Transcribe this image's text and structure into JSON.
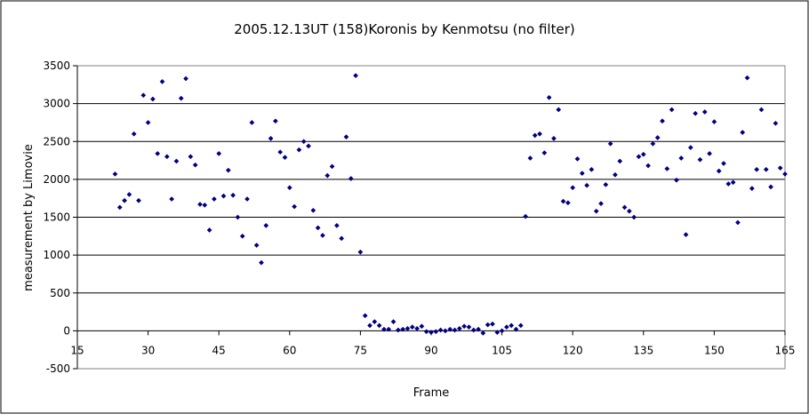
{
  "chart_data": {
    "type": "scatter",
    "title": "2005.12.13UT (158)Koronis  by Kenmotsu (no filter)",
    "xlabel": "Frame",
    "ylabel": "measurement by Limovie",
    "xlim": [
      15,
      165
    ],
    "ylim": [
      -500,
      3500
    ],
    "xticks": [
      15,
      30,
      45,
      60,
      75,
      90,
      105,
      120,
      135,
      150,
      165
    ],
    "yticks": [
      -500,
      0,
      500,
      1000,
      1500,
      2000,
      2500,
      3000,
      3500
    ],
    "grid": "horizontal",
    "legend": "none",
    "marker_color": "#000080",
    "series": [
      {
        "points": [
          [
            23,
            2070
          ],
          [
            24,
            1630
          ],
          [
            25,
            1720
          ],
          [
            26,
            1800
          ],
          [
            27,
            2600
          ],
          [
            28,
            1720
          ],
          [
            29,
            3110
          ],
          [
            30,
            2750
          ],
          [
            31,
            3060
          ],
          [
            32,
            2340
          ],
          [
            33,
            3290
          ],
          [
            34,
            2300
          ],
          [
            35,
            1740
          ],
          [
            36,
            2240
          ],
          [
            37,
            3070
          ],
          [
            38,
            3330
          ],
          [
            39,
            2300
          ],
          [
            40,
            2190
          ],
          [
            41,
            1670
          ],
          [
            42,
            1660
          ],
          [
            43,
            1330
          ],
          [
            44,
            1740
          ],
          [
            45,
            2340
          ],
          [
            46,
            1780
          ],
          [
            47,
            2120
          ],
          [
            48,
            1790
          ],
          [
            49,
            1500
          ],
          [
            50,
            1250
          ],
          [
            51,
            1740
          ],
          [
            52,
            2750
          ],
          [
            53,
            1130
          ],
          [
            54,
            900
          ],
          [
            55,
            1390
          ],
          [
            56,
            2540
          ],
          [
            57,
            2770
          ],
          [
            58,
            2360
          ],
          [
            59,
            2290
          ],
          [
            60,
            1890
          ],
          [
            61,
            1640
          ],
          [
            62,
            2390
          ],
          [
            63,
            2500
          ],
          [
            64,
            2440
          ],
          [
            65,
            1590
          ],
          [
            66,
            1360
          ],
          [
            67,
            1260
          ],
          [
            68,
            2050
          ],
          [
            69,
            2170
          ],
          [
            70,
            1390
          ],
          [
            71,
            1220
          ],
          [
            72,
            2560
          ],
          [
            73,
            2010
          ],
          [
            74,
            3370
          ],
          [
            75,
            1040
          ],
          [
            76,
            200
          ],
          [
            77,
            70
          ],
          [
            78,
            120
          ],
          [
            79,
            70
          ],
          [
            80,
            20
          ],
          [
            81,
            20
          ],
          [
            82,
            120
          ],
          [
            83,
            10
          ],
          [
            84,
            20
          ],
          [
            85,
            30
          ],
          [
            86,
            50
          ],
          [
            87,
            30
          ],
          [
            88,
            60
          ],
          [
            89,
            -10
          ],
          [
            90,
            -20
          ],
          [
            91,
            -10
          ],
          [
            92,
            10
          ],
          [
            93,
            0
          ],
          [
            94,
            20
          ],
          [
            95,
            10
          ],
          [
            96,
            30
          ],
          [
            97,
            60
          ],
          [
            98,
            50
          ],
          [
            99,
            10
          ],
          [
            100,
            20
          ],
          [
            101,
            -30
          ],
          [
            102,
            80
          ],
          [
            103,
            90
          ],
          [
            104,
            -20
          ],
          [
            105,
            0
          ],
          [
            106,
            50
          ],
          [
            107,
            70
          ],
          [
            108,
            20
          ],
          [
            109,
            70
          ],
          [
            110,
            1510
          ],
          [
            111,
            2280
          ],
          [
            112,
            2580
          ],
          [
            113,
            2600
          ],
          [
            114,
            2350
          ],
          [
            115,
            3080
          ],
          [
            116,
            2540
          ],
          [
            117,
            2920
          ],
          [
            118,
            1710
          ],
          [
            119,
            1690
          ],
          [
            120,
            1890
          ],
          [
            121,
            2270
          ],
          [
            122,
            2080
          ],
          [
            123,
            1920
          ],
          [
            124,
            2130
          ],
          [
            125,
            1580
          ],
          [
            126,
            1680
          ],
          [
            127,
            1930
          ],
          [
            128,
            2470
          ],
          [
            129,
            2060
          ],
          [
            130,
            2240
          ],
          [
            131,
            1630
          ],
          [
            132,
            1580
          ],
          [
            133,
            1500
          ],
          [
            134,
            2300
          ],
          [
            135,
            2330
          ],
          [
            136,
            2180
          ],
          [
            137,
            2470
          ],
          [
            138,
            2550
          ],
          [
            139,
            2770
          ],
          [
            140,
            2140
          ],
          [
            141,
            2920
          ],
          [
            142,
            1990
          ],
          [
            143,
            2280
          ],
          [
            144,
            1270
          ],
          [
            145,
            2420
          ],
          [
            146,
            2870
          ],
          [
            147,
            2260
          ],
          [
            148,
            2890
          ],
          [
            149,
            2340
          ],
          [
            150,
            2760
          ],
          [
            151,
            2110
          ],
          [
            152,
            2210
          ],
          [
            153,
            1940
          ],
          [
            154,
            1960
          ],
          [
            155,
            1430
          ],
          [
            156,
            2620
          ],
          [
            157,
            3340
          ],
          [
            158,
            1880
          ],
          [
            159,
            2130
          ],
          [
            160,
            2920
          ],
          [
            161,
            2130
          ],
          [
            162,
            1900
          ],
          [
            163,
            2740
          ],
          [
            164,
            2150
          ],
          [
            165,
            2070
          ]
        ]
      }
    ]
  }
}
